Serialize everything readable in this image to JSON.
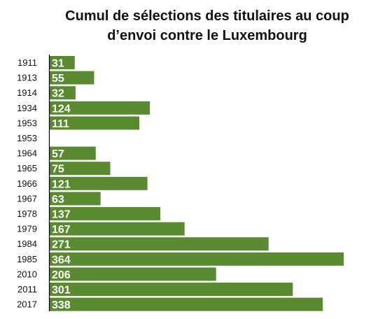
{
  "chart_data": {
    "type": "bar",
    "orientation": "horizontal",
    "title_lines": [
      "Cumul de sélections des titulaires au coup",
      "d’envoi contre le Luxembourg"
    ],
    "categories": [
      "1911",
      "1913",
      "1914",
      "1934",
      "1953",
      "1953",
      "1964",
      "1965",
      "1966",
      "1967",
      "1978",
      "1979",
      "1984",
      "1985",
      "2010",
      "2011",
      "2017"
    ],
    "values": [
      31,
      55,
      32,
      124,
      111,
      null,
      57,
      75,
      121,
      63,
      137,
      167,
      271,
      364,
      206,
      301,
      338
    ],
    "value_labels": [
      "31",
      "55",
      "32",
      "124",
      "111",
      "",
      "57",
      "75",
      "121",
      "63",
      "137",
      "167",
      "271",
      "364",
      "206",
      "301",
      "338"
    ],
    "xlim": [
      0,
      364
    ],
    "grid": false,
    "legend": "none",
    "bar_color": "#5a8a30",
    "label_color": "#ffffff",
    "axis_color": "#000000"
  }
}
